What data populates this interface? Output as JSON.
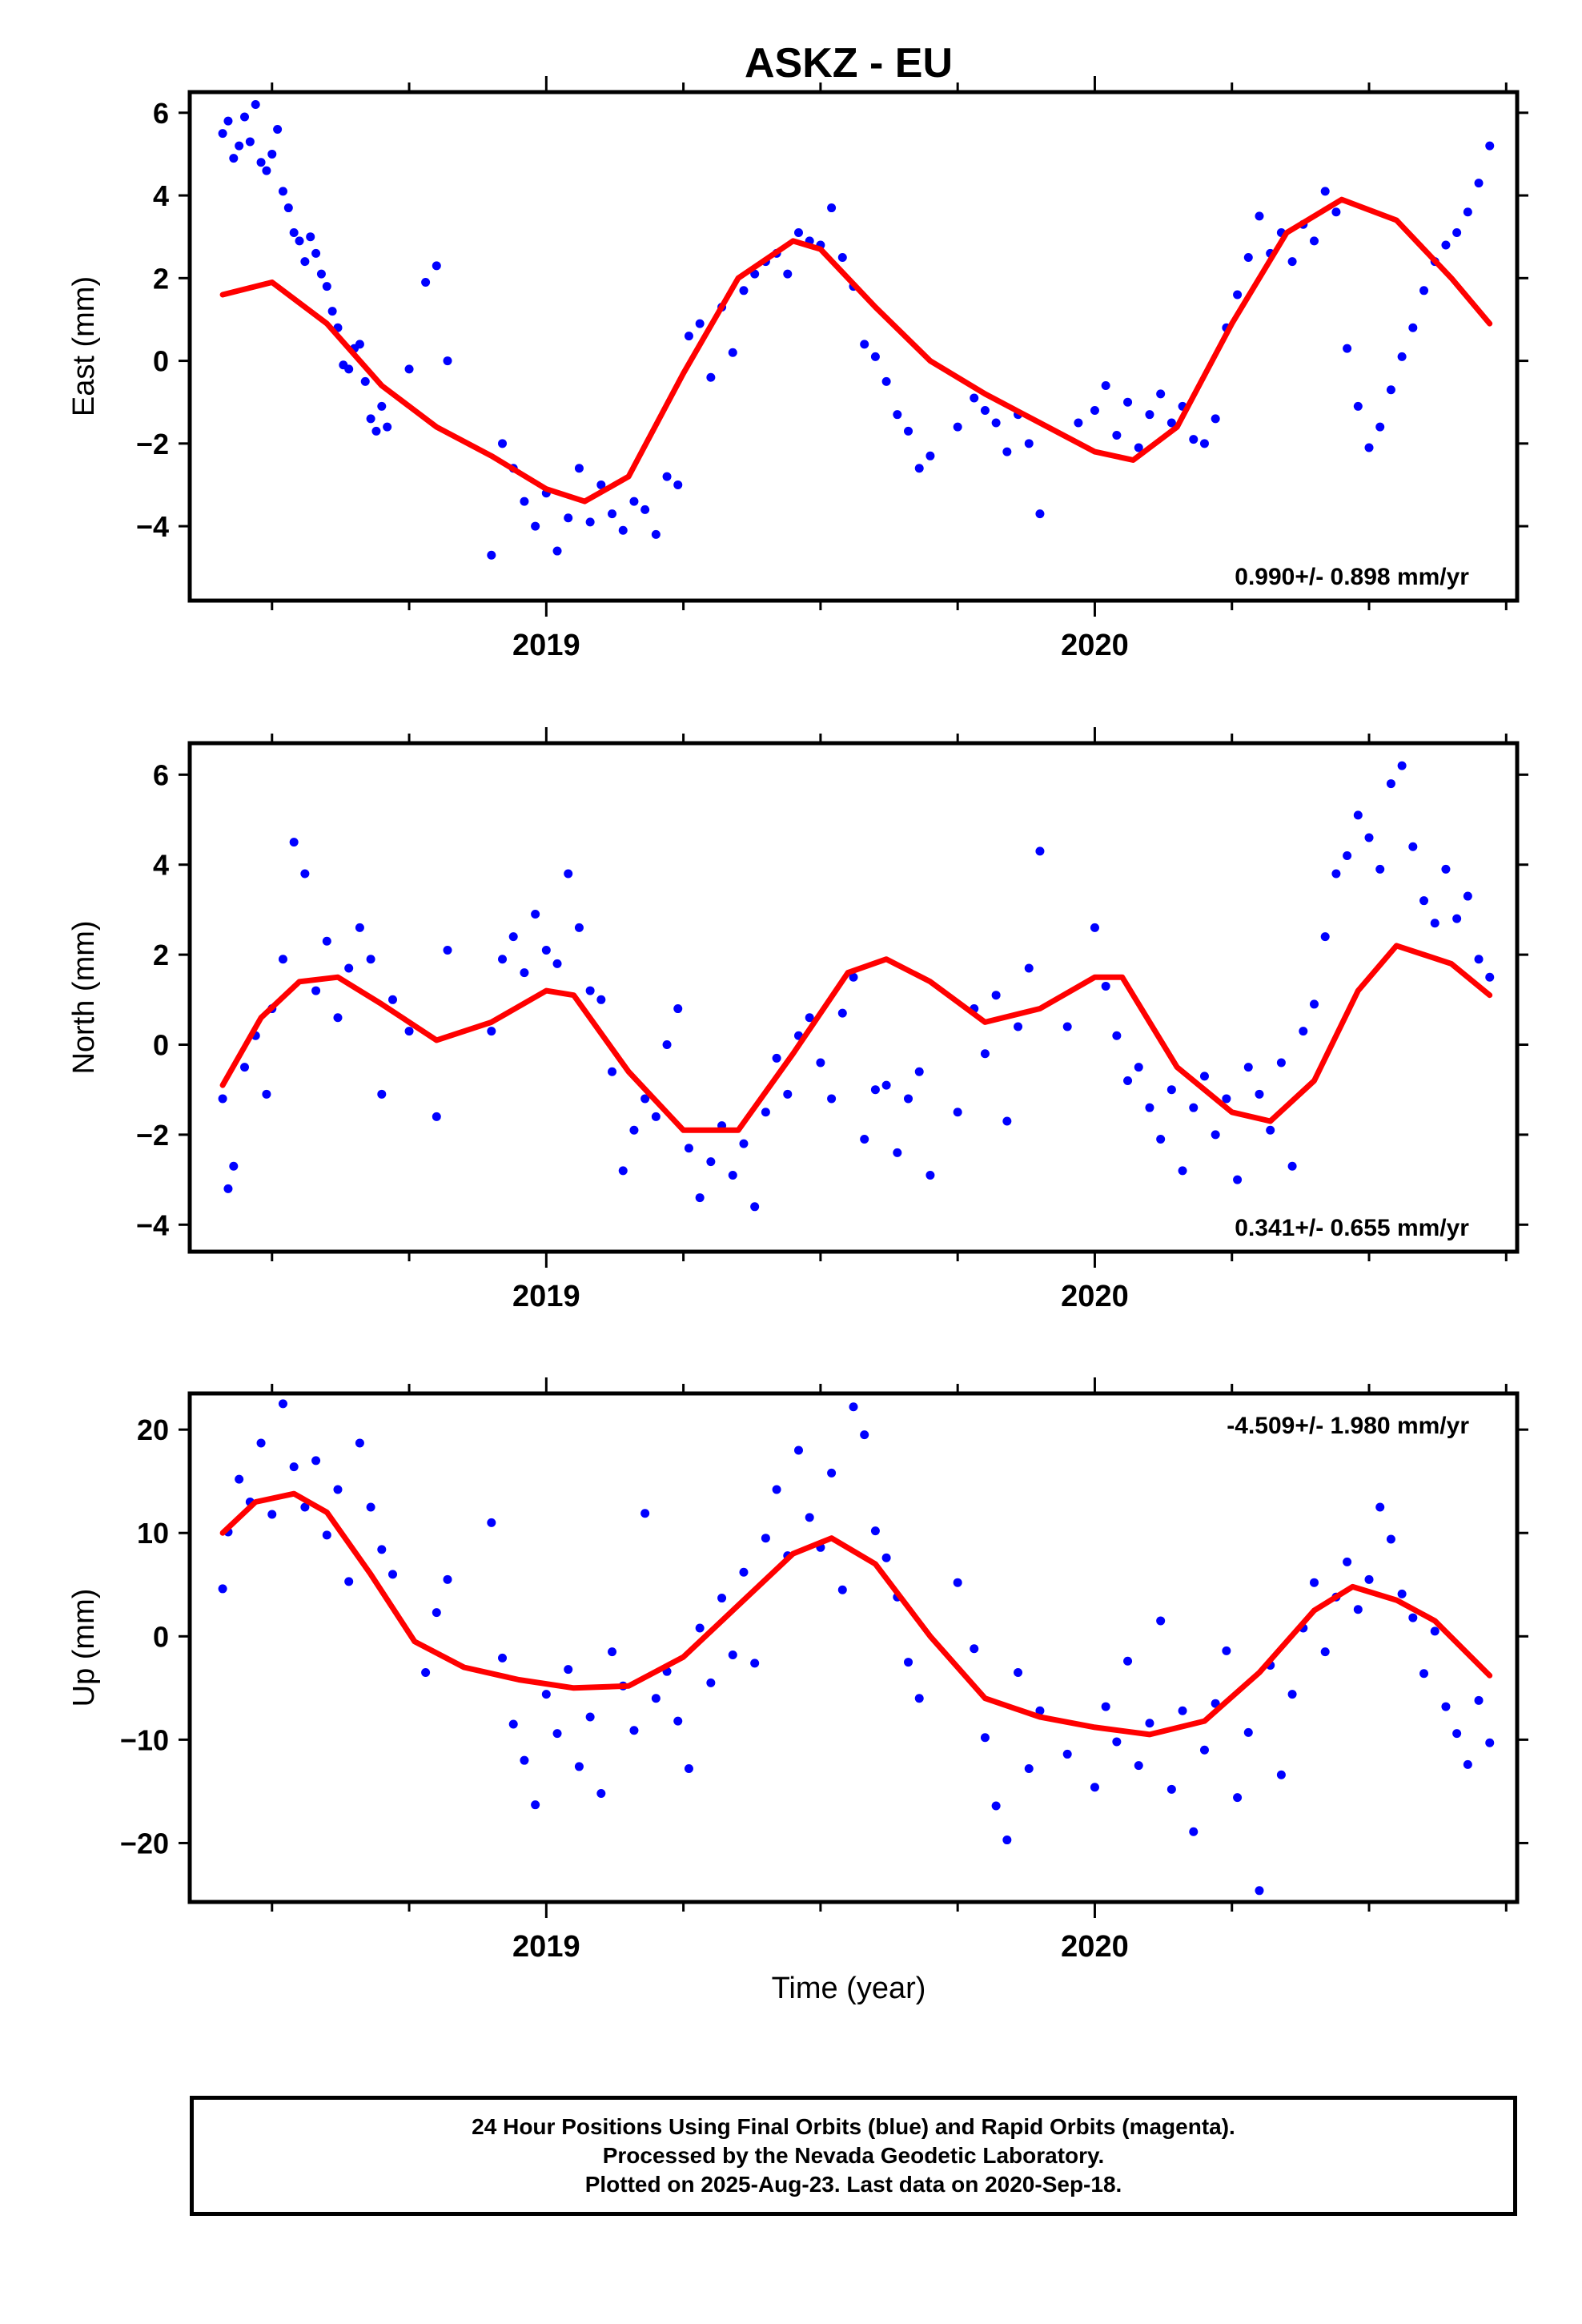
{
  "title": "ASKZ - EU",
  "xlabel": "Time (year)",
  "footer": {
    "line1": "24 Hour Positions Using Final Orbits (blue) and Rapid Orbits (magenta).",
    "line2": "Processed by the Nevada Geodetic Laboratory.",
    "line3": "Plotted on 2025-Aug-23. Last data on 2020-Sep-18."
  },
  "colors": {
    "points": "#0000ff",
    "fit": "#ff0000",
    "axis": "#000000"
  },
  "chart_data": [
    {
      "type": "scatter",
      "ylabel": "East (mm)",
      "rate_label": "0.990+/- 0.898 mm/yr",
      "xlim": [
        2018.35,
        2020.77
      ],
      "ylim": [
        -5.8,
        6.5
      ],
      "yticks": [
        -4,
        -2,
        0,
        2,
        4,
        6
      ],
      "xticks_major": [
        2019,
        2020
      ],
      "xticks_minor": [
        2018.5,
        2018.75,
        2019.25,
        2019.5,
        2019.75,
        2020.25,
        2020.5,
        2020.75
      ],
      "fit": {
        "x": [
          2018.41,
          2018.5,
          2018.6,
          2018.7,
          2018.8,
          2018.9,
          2019.0,
          2019.07,
          2019.15,
          2019.25,
          2019.35,
          2019.45,
          2019.5,
          2019.6,
          2019.7,
          2019.8,
          2019.9,
          2020.0,
          2020.07,
          2020.15,
          2020.25,
          2020.35,
          2020.45,
          2020.55,
          2020.65,
          2020.72
        ],
        "y": [
          1.6,
          1.9,
          0.9,
          -0.6,
          -1.6,
          -2.3,
          -3.1,
          -3.4,
          -2.8,
          -0.3,
          2.0,
          2.9,
          2.7,
          1.3,
          0.0,
          -0.8,
          -1.5,
          -2.2,
          -2.4,
          -1.6,
          0.9,
          3.1,
          3.9,
          3.4,
          2.0,
          0.9
        ]
      },
      "points": {
        "x": [
          2018.41,
          2018.42,
          2018.43,
          2018.44,
          2018.45,
          2018.46,
          2018.47,
          2018.48,
          2018.49,
          2018.5,
          2018.51,
          2018.52,
          2018.53,
          2018.54,
          2018.55,
          2018.56,
          2018.57,
          2018.58,
          2018.59,
          2018.6,
          2018.61,
          2018.62,
          2018.63,
          2018.64,
          2018.65,
          2018.66,
          2018.67,
          2018.68,
          2018.69,
          2018.7,
          2018.71,
          2018.75,
          2018.78,
          2018.8,
          2018.82,
          2018.9,
          2018.92,
          2018.94,
          2018.96,
          2018.98,
          2019.0,
          2019.02,
          2019.04,
          2019.06,
          2019.08,
          2019.1,
          2019.12,
          2019.14,
          2019.16,
          2019.18,
          2019.2,
          2019.22,
          2019.24,
          2019.26,
          2019.28,
          2019.3,
          2019.32,
          2019.34,
          2019.36,
          2019.38,
          2019.4,
          2019.42,
          2019.44,
          2019.46,
          2019.48,
          2019.5,
          2019.52,
          2019.54,
          2019.56,
          2019.58,
          2019.6,
          2019.62,
          2019.64,
          2019.66,
          2019.68,
          2019.7,
          2019.75,
          2019.78,
          2019.8,
          2019.82,
          2019.84,
          2019.86,
          2019.88,
          2019.9,
          2019.97,
          2020.0,
          2020.02,
          2020.04,
          2020.06,
          2020.08,
          2020.1,
          2020.12,
          2020.14,
          2020.16,
          2020.18,
          2020.2,
          2020.22,
          2020.24,
          2020.26,
          2020.28,
          2020.3,
          2020.32,
          2020.34,
          2020.36,
          2020.38,
          2020.4,
          2020.42,
          2020.44,
          2020.46,
          2020.48,
          2020.5,
          2020.52,
          2020.54,
          2020.56,
          2020.58,
          2020.6,
          2020.62,
          2020.64,
          2020.66,
          2020.68,
          2020.7,
          2020.72
        ],
        "y": [
          5.5,
          5.8,
          4.9,
          5.2,
          5.9,
          5.3,
          6.2,
          4.8,
          4.6,
          5.0,
          5.6,
          4.1,
          3.7,
          3.1,
          2.9,
          2.4,
          3.0,
          2.6,
          2.1,
          1.8,
          1.2,
          0.8,
          -0.1,
          -0.2,
          0.3,
          0.4,
          -0.5,
          -1.4,
          -1.7,
          -1.1,
          -1.6,
          -0.2,
          1.9,
          2.3,
          0.0,
          -4.7,
          -2.0,
          -2.6,
          -3.4,
          -4.0,
          -3.2,
          -4.6,
          -3.8,
          -2.6,
          -3.9,
          -3.0,
          -3.7,
          -4.1,
          -3.4,
          -3.6,
          -4.2,
          -2.8,
          -3.0,
          0.6,
          0.9,
          -0.4,
          1.3,
          0.2,
          1.7,
          2.1,
          2.4,
          2.6,
          2.1,
          3.1,
          2.9,
          2.8,
          3.7,
          2.5,
          1.8,
          0.4,
          0.1,
          -0.5,
          -1.3,
          -1.7,
          -2.6,
          -2.3,
          -1.6,
          -0.9,
          -1.2,
          -1.5,
          -2.2,
          -1.3,
          -2.0,
          -3.7,
          -1.5,
          -1.2,
          -0.6,
          -1.8,
          -1.0,
          -2.1,
          -1.3,
          -0.8,
          -1.5,
          -1.1,
          -1.9,
          -2.0,
          -1.4,
          0.8,
          1.6,
          2.5,
          3.5,
          2.6,
          3.1,
          2.4,
          3.3,
          2.9,
          4.1,
          3.6,
          0.3,
          -1.1,
          -2.1,
          -1.6,
          -0.7,
          0.1,
          0.8,
          1.7,
          2.4,
          2.8,
          3.1,
          3.6,
          4.3,
          5.2
        ]
      }
    },
    {
      "type": "scatter",
      "ylabel": "North (mm)",
      "rate_label": "0.341+/- 0.655 mm/yr",
      "xlim": [
        2018.35,
        2020.77
      ],
      "ylim": [
        -4.6,
        6.7
      ],
      "yticks": [
        -4,
        -2,
        0,
        2,
        4,
        6
      ],
      "xticks_major": [
        2019,
        2020
      ],
      "xticks_minor": [
        2018.5,
        2018.75,
        2019.25,
        2019.5,
        2019.75,
        2020.25,
        2020.5,
        2020.75
      ],
      "fit": {
        "x": [
          2018.41,
          2018.48,
          2018.55,
          2018.62,
          2018.7,
          2018.8,
          2018.9,
          2019.0,
          2019.05,
          2019.15,
          2019.25,
          2019.35,
          2019.45,
          2019.55,
          2019.62,
          2019.7,
          2019.8,
          2019.9,
          2020.0,
          2020.05,
          2020.15,
          2020.25,
          2020.32,
          2020.4,
          2020.48,
          2020.55,
          2020.65,
          2020.72
        ],
        "y": [
          -0.9,
          0.6,
          1.4,
          1.5,
          0.9,
          0.1,
          0.5,
          1.2,
          1.1,
          -0.6,
          -1.9,
          -1.9,
          -0.2,
          1.6,
          1.9,
          1.4,
          0.5,
          0.8,
          1.5,
          1.5,
          -0.5,
          -1.5,
          -1.7,
          -0.8,
          1.2,
          2.2,
          1.8,
          1.1
        ]
      },
      "points": {
        "x": [
          2018.41,
          2018.42,
          2018.43,
          2018.45,
          2018.47,
          2018.49,
          2018.5,
          2018.52,
          2018.54,
          2018.56,
          2018.58,
          2018.6,
          2018.62,
          2018.64,
          2018.66,
          2018.68,
          2018.7,
          2018.72,
          2018.75,
          2018.8,
          2018.82,
          2018.9,
          2018.92,
          2018.94,
          2018.96,
          2018.98,
          2019.0,
          2019.02,
          2019.04,
          2019.06,
          2019.08,
          2019.1,
          2019.12,
          2019.14,
          2019.16,
          2019.18,
          2019.2,
          2019.22,
          2019.24,
          2019.26,
          2019.28,
          2019.3,
          2019.32,
          2019.34,
          2019.36,
          2019.38,
          2019.4,
          2019.42,
          2019.44,
          2019.46,
          2019.48,
          2019.5,
          2019.52,
          2019.54,
          2019.56,
          2019.58,
          2019.6,
          2019.62,
          2019.64,
          2019.66,
          2019.68,
          2019.7,
          2019.75,
          2019.78,
          2019.8,
          2019.82,
          2019.84,
          2019.86,
          2019.88,
          2019.9,
          2019.95,
          2020.0,
          2020.02,
          2020.04,
          2020.06,
          2020.08,
          2020.1,
          2020.12,
          2020.14,
          2020.16,
          2020.18,
          2020.2,
          2020.22,
          2020.24,
          2020.26,
          2020.28,
          2020.3,
          2020.32,
          2020.34,
          2020.36,
          2020.38,
          2020.4,
          2020.42,
          2020.44,
          2020.46,
          2020.48,
          2020.5,
          2020.52,
          2020.54,
          2020.56,
          2020.58,
          2020.6,
          2020.62,
          2020.64,
          2020.66,
          2020.68,
          2020.7,
          2020.72
        ],
        "y": [
          -1.2,
          -3.2,
          -2.7,
          -0.5,
          0.2,
          -1.1,
          0.8,
          1.9,
          4.5,
          3.8,
          1.2,
          2.3,
          0.6,
          1.7,
          2.6,
          1.9,
          -1.1,
          1.0,
          0.3,
          -1.6,
          2.1,
          0.3,
          1.9,
          2.4,
          1.6,
          2.9,
          2.1,
          1.8,
          3.8,
          2.6,
          1.2,
          1.0,
          -0.6,
          -2.8,
          -1.9,
          -1.2,
          -1.6,
          0.0,
          0.8,
          -2.3,
          -3.4,
          -2.6,
          -1.8,
          -2.9,
          -2.2,
          -3.6,
          -1.5,
          -0.3,
          -1.1,
          0.2,
          0.6,
          -0.4,
          -1.2,
          0.7,
          1.5,
          -2.1,
          -1.0,
          -0.9,
          -2.4,
          -1.2,
          -0.6,
          -2.9,
          -1.5,
          0.8,
          -0.2,
          1.1,
          -1.7,
          0.4,
          1.7,
          4.3,
          0.4,
          2.6,
          1.3,
          0.2,
          -0.8,
          -0.5,
          -1.4,
          -2.1,
          -1.0,
          -2.8,
          -1.4,
          -0.7,
          -2.0,
          -1.2,
          -3.0,
          -0.5,
          -1.1,
          -1.9,
          -0.4,
          -2.7,
          0.3,
          0.9,
          2.4,
          3.8,
          4.2,
          5.1,
          4.6,
          3.9,
          5.8,
          6.2,
          4.4,
          3.2,
          2.7,
          3.9,
          2.8,
          3.3,
          1.9,
          1.5
        ]
      }
    },
    {
      "type": "scatter",
      "ylabel": "Up (mm)",
      "rate_label": "-4.509+/- 1.980 mm/yr",
      "xlim": [
        2018.35,
        2020.77
      ],
      "ylim": [
        -25.7,
        23.5
      ],
      "yticks": [
        -20,
        -10,
        0,
        10,
        20
      ],
      "xticks_major": [
        2019,
        2020
      ],
      "xticks_minor": [
        2018.5,
        2018.75,
        2019.25,
        2019.5,
        2019.75,
        2020.25,
        2020.5,
        2020.75
      ],
      "fit": {
        "x": [
          2018.41,
          2018.47,
          2018.54,
          2018.6,
          2018.68,
          2018.76,
          2018.85,
          2018.95,
          2019.05,
          2019.15,
          2019.25,
          2019.35,
          2019.45,
          2019.52,
          2019.6,
          2019.7,
          2019.8,
          2019.9,
          2020.0,
          2020.1,
          2020.2,
          2020.3,
          2020.4,
          2020.47,
          2020.55,
          2020.62,
          2020.72
        ],
        "y": [
          10.0,
          13.0,
          13.8,
          12.0,
          6.0,
          -0.5,
          -3.0,
          -4.2,
          -5.0,
          -4.8,
          -2.0,
          3.0,
          8.0,
          9.5,
          7.0,
          0.0,
          -6.0,
          -7.8,
          -8.8,
          -9.5,
          -8.2,
          -3.5,
          2.5,
          4.8,
          3.5,
          1.5,
          -3.8
        ]
      },
      "points": {
        "x": [
          2018.41,
          2018.42,
          2018.44,
          2018.46,
          2018.48,
          2018.5,
          2018.52,
          2018.54,
          2018.56,
          2018.58,
          2018.6,
          2018.62,
          2018.64,
          2018.66,
          2018.68,
          2018.7,
          2018.72,
          2018.78,
          2018.8,
          2018.82,
          2018.9,
          2018.92,
          2018.94,
          2018.96,
          2018.98,
          2019.0,
          2019.02,
          2019.04,
          2019.06,
          2019.08,
          2019.1,
          2019.12,
          2019.14,
          2019.16,
          2019.18,
          2019.2,
          2019.22,
          2019.24,
          2019.26,
          2019.28,
          2019.3,
          2019.32,
          2019.34,
          2019.36,
          2019.38,
          2019.4,
          2019.42,
          2019.44,
          2019.46,
          2019.48,
          2019.5,
          2019.52,
          2019.54,
          2019.56,
          2019.58,
          2019.6,
          2019.62,
          2019.64,
          2019.66,
          2019.68,
          2019.75,
          2019.78,
          2019.8,
          2019.82,
          2019.84,
          2019.86,
          2019.88,
          2019.9,
          2019.95,
          2020.0,
          2020.02,
          2020.04,
          2020.06,
          2020.08,
          2020.1,
          2020.12,
          2020.14,
          2020.16,
          2020.18,
          2020.2,
          2020.22,
          2020.24,
          2020.26,
          2020.28,
          2020.3,
          2020.32,
          2020.34,
          2020.36,
          2020.38,
          2020.4,
          2020.42,
          2020.44,
          2020.46,
          2020.48,
          2020.5,
          2020.52,
          2020.54,
          2020.56,
          2020.58,
          2020.6,
          2020.62,
          2020.64,
          2020.66,
          2020.68,
          2020.7,
          2020.72
        ],
        "y": [
          4.6,
          10.1,
          15.2,
          13.0,
          18.7,
          11.8,
          22.5,
          16.4,
          12.5,
          17.0,
          9.8,
          14.2,
          5.3,
          18.7,
          12.5,
          8.4,
          6.0,
          -3.5,
          2.3,
          5.5,
          11.0,
          -2.1,
          -8.5,
          -12.0,
          -16.3,
          -5.6,
          -9.4,
          -3.2,
          -12.6,
          -7.8,
          -15.2,
          -1.5,
          -4.8,
          -9.1,
          11.9,
          -6.0,
          -3.4,
          -8.2,
          -12.8,
          0.8,
          -4.5,
          3.7,
          -1.8,
          6.2,
          -2.6,
          9.5,
          14.2,
          7.8,
          18.0,
          11.5,
          8.6,
          15.8,
          4.5,
          22.2,
          19.5,
          10.2,
          7.6,
          3.8,
          -2.5,
          -6.0,
          5.2,
          -1.2,
          -9.8,
          -16.4,
          -19.7,
          -3.5,
          -12.8,
          -7.2,
          -11.4,
          -14.6,
          -6.8,
          -10.2,
          -2.4,
          -12.5,
          -8.4,
          1.5,
          -14.8,
          -7.2,
          -18.9,
          -11.0,
          -6.5,
          -1.4,
          -15.6,
          -9.3,
          -24.6,
          -2.8,
          -13.4,
          -5.6,
          0.8,
          5.2,
          -1.5,
          3.8,
          7.2,
          2.6,
          5.5,
          12.5,
          9.4,
          4.1,
          1.8,
          -3.6,
          0.5,
          -6.8,
          -9.4,
          -12.4,
          -6.2,
          -10.3
        ]
      }
    }
  ]
}
